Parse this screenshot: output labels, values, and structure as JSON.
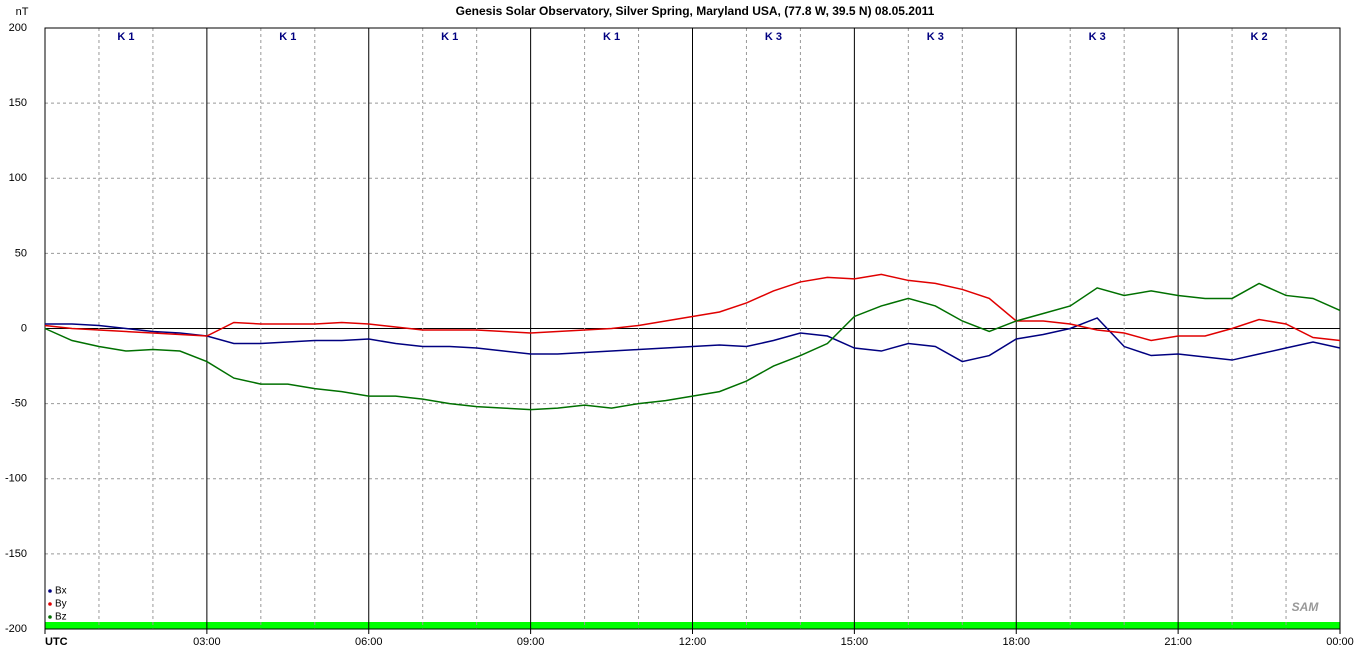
{
  "chart_data": {
    "type": "line",
    "title": "Genesis Solar Observatory, Silver Spring, Maryland USA, (77.8 W, 39.5 N)  08.05.2011",
    "y_label": "nT",
    "logo": "SAM",
    "k_index_labels": [
      "K 1",
      "K 1",
      "K 1",
      "K 1",
      "K 3",
      "K 3",
      "K 3",
      "K 2"
    ],
    "x": [
      0,
      0.5,
      1,
      1.5,
      2,
      2.5,
      3,
      3.5,
      4,
      4.5,
      5,
      5.5,
      6,
      6.5,
      7,
      7.5,
      8,
      8.5,
      9,
      9.5,
      10,
      10.5,
      11,
      11.5,
      12,
      12.5,
      13,
      13.5,
      14,
      14.5,
      15,
      15.5,
      16,
      16.5,
      17,
      17.5,
      18,
      18.5,
      19,
      19.5,
      20,
      20.5,
      21,
      21.5,
      22,
      22.5,
      23,
      23.5,
      24
    ],
    "series": [
      {
        "name": "Bx",
        "color": "#000080",
        "values": [
          3,
          3,
          2,
          0,
          -2,
          -3,
          -5,
          -10,
          -10,
          -9,
          -8,
          -8,
          -7,
          -10,
          -12,
          -12,
          -13,
          -15,
          -17,
          -17,
          -16,
          -15,
          -14,
          -13,
          -12,
          -11,
          -12,
          -8,
          -3,
          -5,
          -13,
          -15,
          -10,
          -12,
          -22,
          -18,
          -7,
          -4,
          0,
          7,
          -12,
          -18,
          -17,
          -19,
          -21,
          -17,
          -13,
          -9,
          -13
        ]
      },
      {
        "name": "By",
        "color": "#e00000",
        "values": [
          2,
          0,
          -1,
          -2,
          -3,
          -4,
          -5,
          4,
          3,
          3,
          3,
          4,
          3,
          1,
          -1,
          -1,
          -1,
          -2,
          -3,
          -2,
          -1,
          0,
          2,
          5,
          8,
          11,
          17,
          25,
          31,
          34,
          33,
          36,
          32,
          30,
          26,
          20,
          5,
          5,
          3,
          -1,
          -3,
          -8,
          -5,
          -5,
          0,
          6,
          3,
          -6,
          -8
        ]
      },
      {
        "name": "Bz",
        "color": "#007000",
        "values": [
          0,
          -8,
          -12,
          -15,
          -14,
          -15,
          -22,
          -33,
          -37,
          -37,
          -40,
          -42,
          -45,
          -45,
          -47,
          -50,
          -52,
          -53,
          -54,
          -53,
          -51,
          -53,
          -50,
          -48,
          -45,
          -42,
          -35,
          -25,
          -18,
          -10,
          8,
          15,
          20,
          15,
          5,
          -2,
          5,
          10,
          15,
          27,
          22,
          25,
          22,
          20,
          20,
          30,
          22,
          20,
          12
        ]
      }
    ],
    "xlim": [
      0,
      24
    ],
    "xticks": [
      {
        "value": 0,
        "label": "UTC"
      },
      {
        "value": 3,
        "label": "03:00"
      },
      {
        "value": 6,
        "label": "06:00"
      },
      {
        "value": 9,
        "label": "09:00"
      },
      {
        "value": 12,
        "label": "12:00"
      },
      {
        "value": 15,
        "label": "15:00"
      },
      {
        "value": 18,
        "label": "18:00"
      },
      {
        "value": 21,
        "label": "21:00"
      },
      {
        "value": 24,
        "label": "00:00"
      }
    ],
    "xminorticks": [
      1,
      2,
      4,
      5,
      7,
      8,
      10,
      11,
      13,
      14,
      16,
      17,
      19,
      20,
      22,
      23
    ],
    "ylim": [
      -200,
      200
    ],
    "yticks": [
      -200,
      -150,
      -100,
      -50,
      0,
      50,
      100,
      150,
      200
    ],
    "grid": true,
    "legend": "lower left"
  }
}
